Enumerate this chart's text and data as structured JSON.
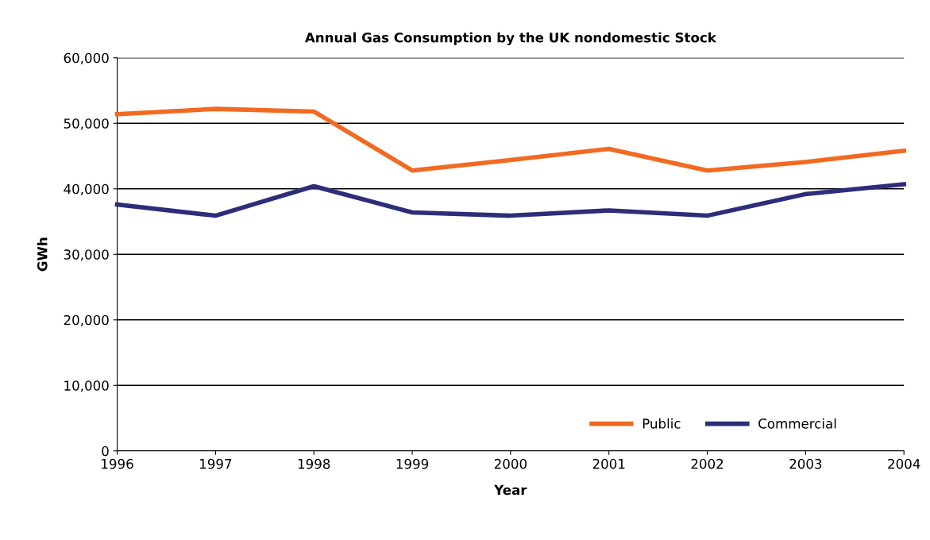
{
  "chart_data": {
    "type": "line",
    "title": "Annual Gas Consumption by the UK nondomestic Stock",
    "xlabel": "Year",
    "ylabel": "GWh",
    "x": [
      1996,
      1997,
      1998,
      1999,
      2000,
      2001,
      2002,
      2003,
      2004
    ],
    "series": [
      {
        "name": "Public",
        "color": "#f26a21",
        "values": [
          51400,
          52200,
          51800,
          42800,
          44400,
          46100,
          42800,
          44100,
          45800
        ]
      },
      {
        "name": "Commercial",
        "color": "#2e2d7a",
        "values": [
          37600,
          35900,
          40400,
          36400,
          35900,
          36700,
          35900,
          39200,
          40700
        ]
      }
    ],
    "xlim": [
      1996,
      2004
    ],
    "xticks": [
      1996,
      1997,
      1998,
      1999,
      2000,
      2001,
      2002,
      2003,
      2004
    ],
    "ylim": [
      0,
      60000
    ],
    "yticks": [
      {
        "value": 0,
        "label": "0"
      },
      {
        "value": 10000,
        "label": "10,000"
      },
      {
        "value": 20000,
        "label": "20,000"
      },
      {
        "value": 30000,
        "label": "30,000"
      },
      {
        "value": 40000,
        "label": "40,000"
      },
      {
        "value": 50000,
        "label": "50,000"
      },
      {
        "value": 60000,
        "label": "60,000"
      }
    ],
    "grid": "y",
    "legend": "bottom right",
    "marker": "none",
    "line_style": "solid"
  }
}
